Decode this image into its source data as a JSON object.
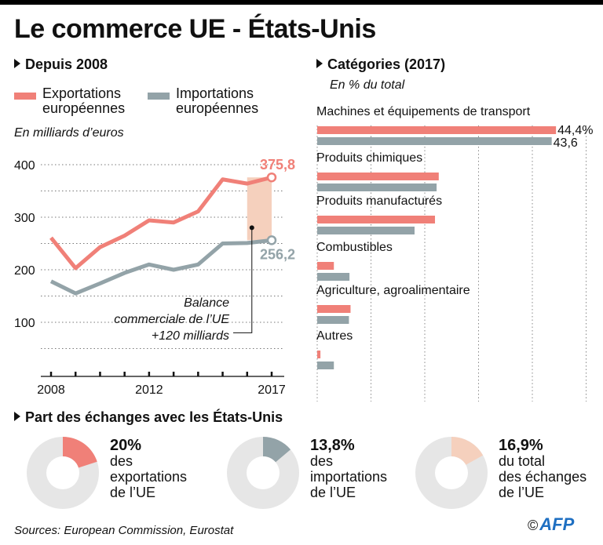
{
  "title": "Le commerce UE - États-Unis",
  "section_history": "Depuis 2008",
  "section_categories": "Catégories (2017)",
  "section_share": "Part des échanges avec les États-Unis",
  "colors": {
    "exports": "#f08078",
    "imports": "#93a3a8",
    "balance": "#f5d0bd",
    "donut_bg": "#e6e6e6"
  },
  "legend": {
    "exports_line1": "Exportations",
    "exports_line2": "européennes",
    "imports_line1": "Importations",
    "imports_line2": "européennes"
  },
  "unit_history": "En milliards d’euros",
  "unit_categories": "En % du total",
  "annotation": {
    "line1": "Balance",
    "line2": "commerciale de l’UE",
    "line3": "+120 milliards"
  },
  "chart_data": [
    {
      "type": "line",
      "title": "Depuis 2008",
      "ylabel": "En milliards d’euros",
      "x": [
        2008,
        2009,
        2010,
        2011,
        2012,
        2013,
        2014,
        2015,
        2016,
        2017
      ],
      "xticks": [
        "2008",
        "2012",
        "2017"
      ],
      "yticks": [
        100,
        200,
        300,
        400
      ],
      "ylim": [
        0,
        420
      ],
      "grid": true,
      "series": [
        {
          "name": "Exportations européennes",
          "values": [
            261,
            203,
            243,
            265,
            294,
            290,
            311,
            372,
            364,
            375.8
          ],
          "end_label": "375,8"
        },
        {
          "name": "Importations européennes",
          "values": [
            178,
            155,
            174,
            194,
            210,
            200,
            210,
            250,
            251,
            256.2
          ],
          "end_label": "256,2"
        }
      ],
      "annotation": "Balance commerciale de l’UE +120 milliards"
    },
    {
      "type": "bar",
      "title": "Catégories (2017)",
      "subtitle": "En % du total",
      "categories": [
        "Machines et équipements de transport",
        "Produits chimiques",
        "Produits manufacturés",
        "Combustibles",
        "Agriculture, agroalimentaire",
        "Autres"
      ],
      "series": [
        {
          "name": "Exportations européennes",
          "values": [
            44.4,
            22.6,
            21.9,
            3.1,
            6.2,
            0.6
          ]
        },
        {
          "name": "Importations européennes",
          "values": [
            43.6,
            22.2,
            18.1,
            6.0,
            5.9,
            3.1
          ]
        }
      ],
      "data_labels": {
        "export_first": "44,4%",
        "import_first": "43,6"
      },
      "xlim": [
        0,
        50
      ],
      "grid": true
    },
    {
      "type": "pie",
      "title": "Part des échanges avec les États-Unis",
      "slices": [
        {
          "value": 20,
          "label": "20%",
          "text": [
            "des",
            "exportations",
            "de l’UE"
          ],
          "color": "exports"
        },
        {
          "value": 13.8,
          "label": "13,8%",
          "text": [
            "des",
            "importations",
            "de l’UE"
          ],
          "color": "imports"
        },
        {
          "value": 16.9,
          "label": "16,9%",
          "text": [
            "du total",
            "des échanges",
            "de l’UE"
          ],
          "color": "balance"
        }
      ]
    }
  ],
  "source": "Sources: European Commission, Eurostat",
  "credit": {
    "copyright": "©",
    "logo": "AFP"
  }
}
